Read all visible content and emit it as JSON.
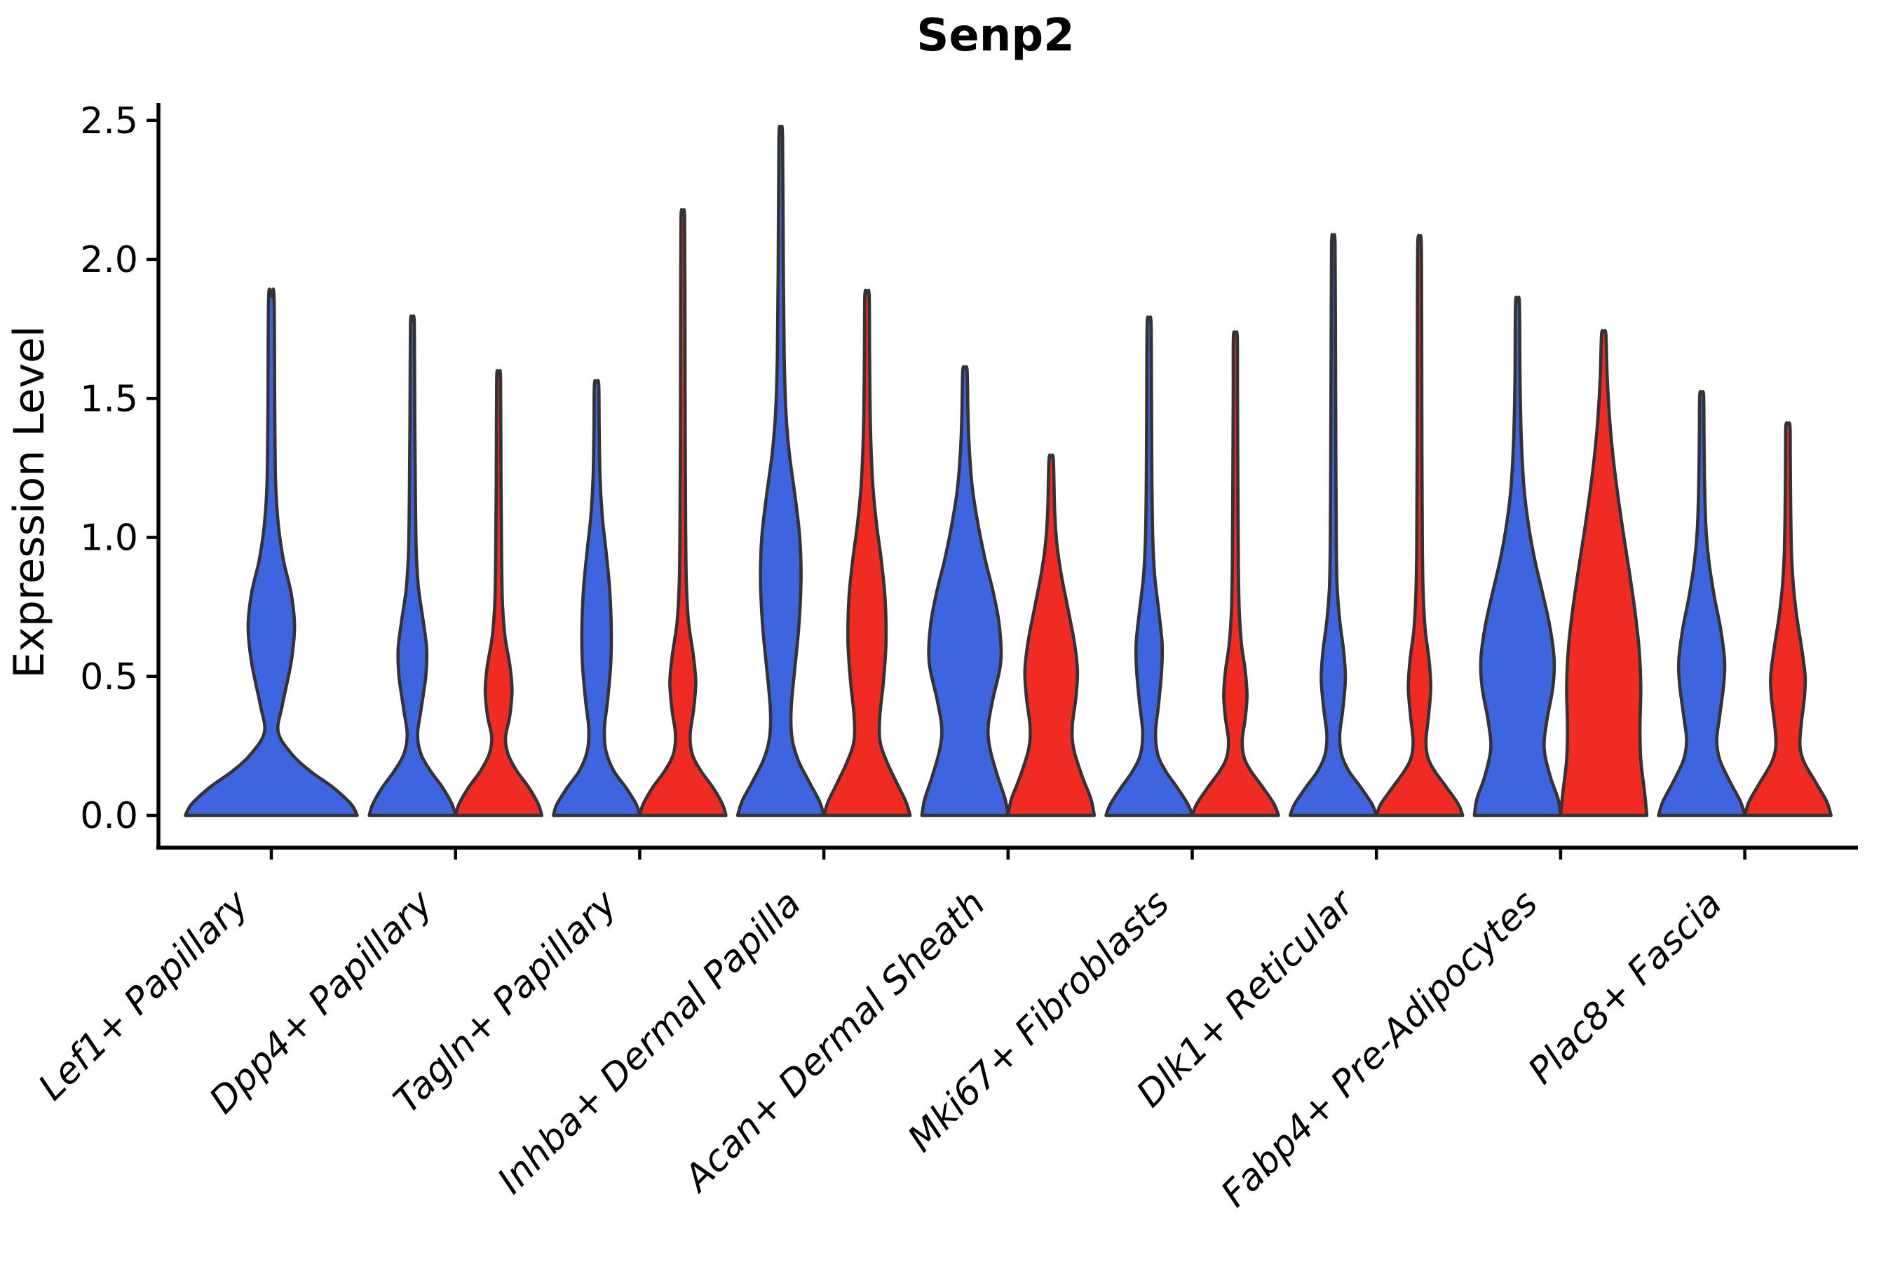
{
  "title": "Senp2",
  "ylabel": "Expression Level",
  "colors": {
    "blue_fill": "#3E64E0",
    "red_fill": "#F02B23",
    "violin_edge": "#333333",
    "axis": "#000000",
    "background": "#ffffff"
  },
  "chart_data": {
    "type": "violin",
    "title": "Senp2",
    "xlabel": "",
    "ylabel": "Expression Level",
    "ylim": [
      0,
      2.5
    ],
    "yticks": [
      0.0,
      0.5,
      1.0,
      1.5,
      2.0,
      2.5
    ],
    "ytick_labels": [
      "0.0",
      "0.5",
      "1.0",
      "1.5",
      "2.0",
      "2.5"
    ],
    "grid": false,
    "legend": "none",
    "categories": [
      "Lef1+ Papillary",
      "Dpp4+ Papillary",
      "Tagln+ Papillary",
      "Inhba+ Dermal Papilla",
      "Acan+ Dermal Sheath",
      "Mki67+ Fibroblasts",
      "Dlk1+ Reticular",
      "Fabp4+ Pre-Adipocytes",
      "Plac8+ Fascia"
    ],
    "groups": [
      {
        "id": "blue",
        "color": "#3E64E0"
      },
      {
        "id": "red",
        "color": "#F02B23"
      }
    ],
    "violins": [
      {
        "category_index": 0,
        "group": "blue",
        "dodge": "center",
        "min_expression": 0,
        "max_expression": 1.86,
        "profile": [
          [
            0,
            1
          ],
          [
            0.04,
            0.93
          ],
          [
            0.1,
            0.72
          ],
          [
            0.16,
            0.45
          ],
          [
            0.22,
            0.24
          ],
          [
            0.3,
            0.08
          ],
          [
            0.4,
            0.13
          ],
          [
            0.55,
            0.23
          ],
          [
            0.68,
            0.27
          ],
          [
            0.8,
            0.23
          ],
          [
            0.92,
            0.14
          ],
          [
            1.05,
            0.08
          ],
          [
            1.2,
            0.05
          ],
          [
            1.45,
            0.04
          ],
          [
            1.86,
            0.032
          ]
        ]
      },
      {
        "category_index": 1,
        "group": "blue",
        "dodge": "left",
        "min_expression": 0,
        "max_expression": 1.77,
        "profile": [
          [
            0,
            1
          ],
          [
            0.04,
            0.92
          ],
          [
            0.1,
            0.7
          ],
          [
            0.16,
            0.42
          ],
          [
            0.22,
            0.2
          ],
          [
            0.29,
            0.12
          ],
          [
            0.38,
            0.2
          ],
          [
            0.5,
            0.31
          ],
          [
            0.6,
            0.33
          ],
          [
            0.7,
            0.25
          ],
          [
            0.82,
            0.14
          ],
          [
            0.95,
            0.09
          ],
          [
            1.15,
            0.07
          ],
          [
            1.45,
            0.055
          ],
          [
            1.77,
            0.045
          ]
        ]
      },
      {
        "category_index": 1,
        "group": "red",
        "dodge": "right",
        "min_expression": 0,
        "max_expression": 1.57,
        "profile": [
          [
            0,
            1
          ],
          [
            0.04,
            0.92
          ],
          [
            0.1,
            0.7
          ],
          [
            0.16,
            0.42
          ],
          [
            0.22,
            0.22
          ],
          [
            0.28,
            0.16
          ],
          [
            0.36,
            0.26
          ],
          [
            0.45,
            0.31
          ],
          [
            0.54,
            0.26
          ],
          [
            0.64,
            0.15
          ],
          [
            0.76,
            0.09
          ],
          [
            0.92,
            0.07
          ],
          [
            1.2,
            0.055
          ],
          [
            1.57,
            0.045
          ]
        ]
      },
      {
        "category_index": 2,
        "group": "blue",
        "dodge": "left",
        "min_expression": 0,
        "max_expression": 1.55,
        "profile": [
          [
            0,
            1
          ],
          [
            0.04,
            0.92
          ],
          [
            0.1,
            0.68
          ],
          [
            0.16,
            0.4
          ],
          [
            0.23,
            0.22
          ],
          [
            0.31,
            0.18
          ],
          [
            0.42,
            0.26
          ],
          [
            0.55,
            0.33
          ],
          [
            0.68,
            0.34
          ],
          [
            0.82,
            0.3
          ],
          [
            0.95,
            0.22
          ],
          [
            1.08,
            0.13
          ],
          [
            1.22,
            0.08
          ],
          [
            1.4,
            0.06
          ],
          [
            1.55,
            0.05
          ]
        ]
      },
      {
        "category_index": 2,
        "group": "red",
        "dodge": "right",
        "min_expression": 0,
        "max_expression": 2.15,
        "profile": [
          [
            0,
            1
          ],
          [
            0.04,
            0.92
          ],
          [
            0.1,
            0.7
          ],
          [
            0.16,
            0.42
          ],
          [
            0.22,
            0.22
          ],
          [
            0.29,
            0.17
          ],
          [
            0.38,
            0.25
          ],
          [
            0.48,
            0.3
          ],
          [
            0.58,
            0.24
          ],
          [
            0.7,
            0.13
          ],
          [
            0.85,
            0.08
          ],
          [
            1.05,
            0.065
          ],
          [
            1.4,
            0.055
          ],
          [
            1.8,
            0.05
          ],
          [
            2.15,
            0.042
          ]
        ]
      },
      {
        "category_index": 3,
        "group": "blue",
        "dodge": "left",
        "min_expression": 0,
        "max_expression": 2.44,
        "profile": [
          [
            0,
            1
          ],
          [
            0.05,
            0.9
          ],
          [
            0.12,
            0.66
          ],
          [
            0.2,
            0.4
          ],
          [
            0.28,
            0.26
          ],
          [
            0.38,
            0.24
          ],
          [
            0.52,
            0.32
          ],
          [
            0.68,
            0.42
          ],
          [
            0.85,
            0.47
          ],
          [
            1,
            0.44
          ],
          [
            1.15,
            0.33
          ],
          [
            1.3,
            0.2
          ],
          [
            1.45,
            0.12
          ],
          [
            1.65,
            0.08
          ],
          [
            1.95,
            0.06
          ],
          [
            2.44,
            0.042
          ]
        ]
      },
      {
        "category_index": 3,
        "group": "red",
        "dodge": "right",
        "min_expression": 0,
        "max_expression": 1.87,
        "profile": [
          [
            0,
            1
          ],
          [
            0.05,
            0.9
          ],
          [
            0.12,
            0.68
          ],
          [
            0.2,
            0.44
          ],
          [
            0.27,
            0.3
          ],
          [
            0.36,
            0.3
          ],
          [
            0.48,
            0.38
          ],
          [
            0.62,
            0.44
          ],
          [
            0.78,
            0.42
          ],
          [
            0.92,
            0.33
          ],
          [
            1.05,
            0.22
          ],
          [
            1.2,
            0.13
          ],
          [
            1.4,
            0.08
          ],
          [
            1.65,
            0.06
          ],
          [
            1.87,
            0.05
          ]
        ]
      },
      {
        "category_index": 4,
        "group": "blue",
        "dodge": "left",
        "min_expression": 0,
        "max_expression": 1.6,
        "profile": [
          [
            0,
            1
          ],
          [
            0.06,
            0.93
          ],
          [
            0.14,
            0.76
          ],
          [
            0.24,
            0.58
          ],
          [
            0.32,
            0.54
          ],
          [
            0.42,
            0.65
          ],
          [
            0.55,
            0.83
          ],
          [
            0.68,
            0.8
          ],
          [
            0.8,
            0.66
          ],
          [
            0.92,
            0.47
          ],
          [
            1.05,
            0.3
          ],
          [
            1.18,
            0.17
          ],
          [
            1.32,
            0.1
          ],
          [
            1.45,
            0.07
          ],
          [
            1.6,
            0.05
          ]
        ]
      },
      {
        "category_index": 4,
        "group": "red",
        "dodge": "right",
        "min_expression": 0,
        "max_expression": 1.28,
        "profile": [
          [
            0,
            1
          ],
          [
            0.06,
            0.92
          ],
          [
            0.14,
            0.72
          ],
          [
            0.24,
            0.52
          ],
          [
            0.32,
            0.49
          ],
          [
            0.42,
            0.57
          ],
          [
            0.52,
            0.61
          ],
          [
            0.63,
            0.53
          ],
          [
            0.75,
            0.38
          ],
          [
            0.87,
            0.23
          ],
          [
            0.98,
            0.13
          ],
          [
            1.1,
            0.08
          ],
          [
            1.28,
            0.05
          ]
        ]
      },
      {
        "category_index": 5,
        "group": "blue",
        "dodge": "left",
        "min_expression": 0,
        "max_expression": 1.77,
        "profile": [
          [
            0,
            1
          ],
          [
            0.04,
            0.9
          ],
          [
            0.1,
            0.65
          ],
          [
            0.16,
            0.38
          ],
          [
            0.22,
            0.2
          ],
          [
            0.3,
            0.15
          ],
          [
            0.4,
            0.22
          ],
          [
            0.52,
            0.29
          ],
          [
            0.62,
            0.3
          ],
          [
            0.74,
            0.22
          ],
          [
            0.86,
            0.13
          ],
          [
            1,
            0.085
          ],
          [
            1.2,
            0.065
          ],
          [
            1.5,
            0.055
          ],
          [
            1.77,
            0.045
          ]
        ]
      },
      {
        "category_index": 5,
        "group": "red",
        "dodge": "right",
        "min_expression": 0,
        "max_expression": 1.72,
        "profile": [
          [
            0,
            1
          ],
          [
            0.04,
            0.9
          ],
          [
            0.1,
            0.64
          ],
          [
            0.16,
            0.36
          ],
          [
            0.21,
            0.2
          ],
          [
            0.27,
            0.16
          ],
          [
            0.35,
            0.23
          ],
          [
            0.43,
            0.27
          ],
          [
            0.52,
            0.23
          ],
          [
            0.62,
            0.14
          ],
          [
            0.74,
            0.09
          ],
          [
            0.9,
            0.07
          ],
          [
            1.15,
            0.06
          ],
          [
            1.5,
            0.05
          ],
          [
            1.72,
            0.045
          ]
        ]
      },
      {
        "category_index": 6,
        "group": "blue",
        "dodge": "left",
        "min_expression": 0,
        "max_expression": 2.06,
        "profile": [
          [
            0,
            1
          ],
          [
            0.04,
            0.9
          ],
          [
            0.1,
            0.64
          ],
          [
            0.16,
            0.36
          ],
          [
            0.22,
            0.19
          ],
          [
            0.29,
            0.15
          ],
          [
            0.38,
            0.22
          ],
          [
            0.49,
            0.28
          ],
          [
            0.59,
            0.24
          ],
          [
            0.7,
            0.15
          ],
          [
            0.82,
            0.09
          ],
          [
            0.98,
            0.07
          ],
          [
            1.25,
            0.06
          ],
          [
            1.7,
            0.05
          ],
          [
            2.06,
            0.04
          ]
        ]
      },
      {
        "category_index": 6,
        "group": "red",
        "dodge": "right",
        "min_expression": 0,
        "max_expression": 2.06,
        "profile": [
          [
            0,
            1
          ],
          [
            0.04,
            0.9
          ],
          [
            0.1,
            0.63
          ],
          [
            0.16,
            0.35
          ],
          [
            0.21,
            0.19
          ],
          [
            0.27,
            0.15
          ],
          [
            0.36,
            0.21
          ],
          [
            0.46,
            0.26
          ],
          [
            0.56,
            0.22
          ],
          [
            0.67,
            0.13
          ],
          [
            0.8,
            0.085
          ],
          [
            0.97,
            0.065
          ],
          [
            1.3,
            0.055
          ],
          [
            1.75,
            0.05
          ],
          [
            2.06,
            0.04
          ]
        ]
      },
      {
        "category_index": 7,
        "group": "blue",
        "dodge": "left",
        "min_expression": 0,
        "max_expression": 1.84,
        "profile": [
          [
            0,
            1
          ],
          [
            0.06,
            0.94
          ],
          [
            0.14,
            0.76
          ],
          [
            0.24,
            0.62
          ],
          [
            0.34,
            0.68
          ],
          [
            0.46,
            0.82
          ],
          [
            0.56,
            0.85
          ],
          [
            0.68,
            0.75
          ],
          [
            0.8,
            0.58
          ],
          [
            0.92,
            0.4
          ],
          [
            1.05,
            0.25
          ],
          [
            1.18,
            0.15
          ],
          [
            1.35,
            0.09
          ],
          [
            1.55,
            0.06
          ],
          [
            1.84,
            0.045
          ]
        ]
      },
      {
        "category_index": 7,
        "group": "red",
        "dodge": "right",
        "min_expression": 0,
        "max_expression": 1.73,
        "profile": [
          [
            0,
            1
          ],
          [
            0.08,
            0.95
          ],
          [
            0.2,
            0.86
          ],
          [
            0.32,
            0.84
          ],
          [
            0.46,
            0.86
          ],
          [
            0.6,
            0.82
          ],
          [
            0.74,
            0.72
          ],
          [
            0.88,
            0.59
          ],
          [
            1.02,
            0.45
          ],
          [
            1.16,
            0.32
          ],
          [
            1.3,
            0.21
          ],
          [
            1.44,
            0.13
          ],
          [
            1.58,
            0.08
          ],
          [
            1.73,
            0.05
          ]
        ]
      },
      {
        "category_index": 8,
        "group": "blue",
        "dodge": "left",
        "min_expression": 0,
        "max_expression": 1.51,
        "profile": [
          [
            0,
            1
          ],
          [
            0.05,
            0.9
          ],
          [
            0.12,
            0.66
          ],
          [
            0.2,
            0.42
          ],
          [
            0.27,
            0.35
          ],
          [
            0.36,
            0.42
          ],
          [
            0.47,
            0.51
          ],
          [
            0.56,
            0.53
          ],
          [
            0.67,
            0.44
          ],
          [
            0.79,
            0.29
          ],
          [
            0.91,
            0.17
          ],
          [
            1.03,
            0.1
          ],
          [
            1.18,
            0.07
          ],
          [
            1.35,
            0.055
          ],
          [
            1.51,
            0.045
          ]
        ]
      },
      {
        "category_index": 8,
        "group": "red",
        "dodge": "right",
        "min_expression": 0,
        "max_expression": 1.4,
        "profile": [
          [
            0,
            1
          ],
          [
            0.05,
            0.9
          ],
          [
            0.12,
            0.64
          ],
          [
            0.19,
            0.38
          ],
          [
            0.25,
            0.28
          ],
          [
            0.33,
            0.31
          ],
          [
            0.42,
            0.38
          ],
          [
            0.5,
            0.4
          ],
          [
            0.6,
            0.32
          ],
          [
            0.71,
            0.21
          ],
          [
            0.82,
            0.13
          ],
          [
            0.94,
            0.085
          ],
          [
            1.1,
            0.065
          ],
          [
            1.28,
            0.055
          ],
          [
            1.4,
            0.048
          ]
        ]
      }
    ]
  }
}
